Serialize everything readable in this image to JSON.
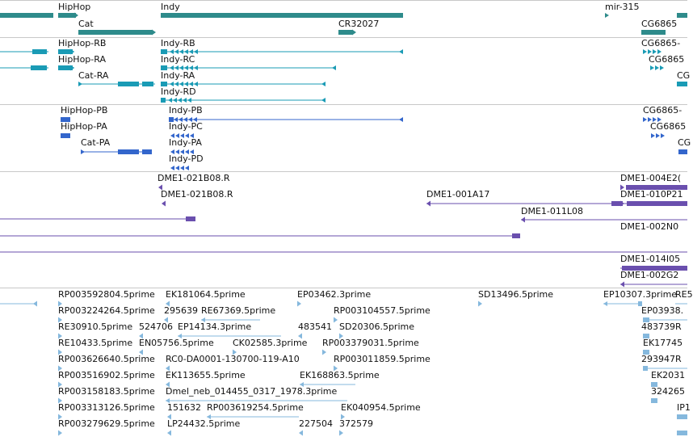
{
  "colors": {
    "gene": "#2e8b8b",
    "transcript": "#1a9bb5",
    "protein": "#3366cc",
    "clone": "#6a4fae",
    "est": "#85b8dd",
    "divider": "#c8c8c8"
  },
  "tracks": {
    "genes": {
      "labels": [
        "HipHop",
        "Indy",
        "mir-315",
        "Cat",
        "CR32027",
        "CG6865"
      ]
    },
    "transcripts": {
      "labels": [
        "HipHop-RB",
        "Indy-RB",
        "CG6865-",
        "HipHop-RA",
        "Indy-RC",
        "CG6865",
        "Cat-RA",
        "Indy-RA",
        "CG",
        "Indy-RD"
      ]
    },
    "proteins": {
      "labels": [
        "HipHop-PB",
        "Indy-PB",
        "CG6865-",
        "HipHop-PA",
        "Indy-PC",
        "CG6865",
        "Cat-PA",
        "Indy-PA",
        "CG",
        "Indy-PD"
      ]
    },
    "clones": {
      "labels": [
        "DME1-021B08.R",
        "DME1-004E2(",
        "DME1-021B08.R",
        "DME1-001A17",
        "DME1-010P21",
        "DME1-011L08",
        "DME1-002N0",
        "DME1-014I05",
        "DME1-002G2"
      ]
    },
    "ests": {
      "labels": [
        "RP003592804.5prime",
        "EK181064.5prime",
        "EP03462.3prime",
        "SD13496.5prime",
        "EP10307.3prime",
        "RE5",
        "RP003224264.5prime",
        "295639",
        "RE67369.5prime",
        "RP003104557.5prime",
        "EP03938.",
        "RE30910.5prime",
        "524706",
        "EP14134.3prime",
        "483541",
        "SD20306.5prime",
        "483739R",
        "RE10433.5prime",
        "EN05756.5prime",
        "CK02585.3prime",
        "RP003379031.5prime",
        "EK17745",
        "RP003626640.5prime",
        "RC0-DA0001-130700-119-A10",
        "RP003011859.5prime",
        "293947R",
        "RP003516902.5prime",
        "EK113655.5prime",
        "EK168863.5prime",
        "EK2031",
        "RP003158183.5prime",
        "Dmel_neb_014455_0317_1978.3prime",
        "324265",
        "RP003313126.5prime",
        "151632",
        "RP003619254.5prime",
        "EK040954.5prime",
        "IP1",
        "RP003279629.5prime",
        "LP24432.5prime",
        "227504",
        "372579"
      ]
    }
  }
}
